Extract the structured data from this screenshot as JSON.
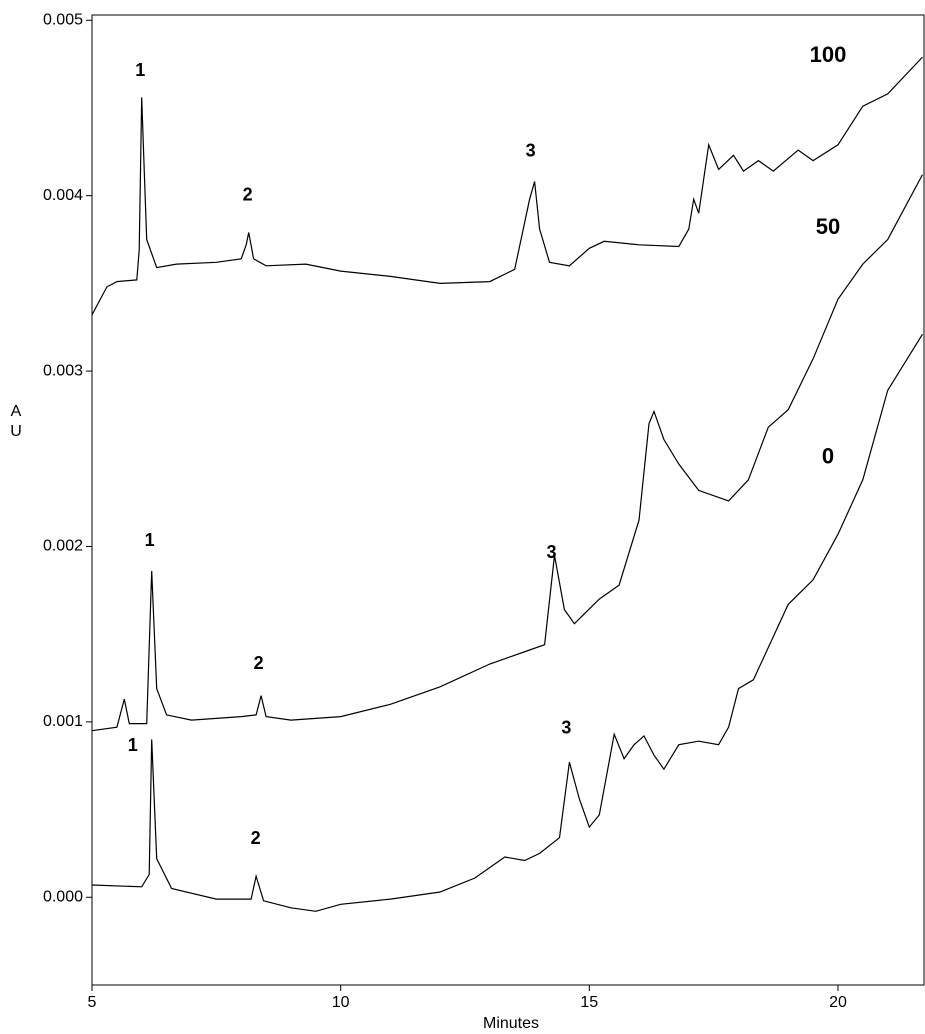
{
  "chart_data": {
    "type": "line",
    "xlabel": "Minutes",
    "ylabel": "A U",
    "xlim": [
      5,
      21.73
    ],
    "ylim": [
      -0.0005,
      0.00503
    ],
    "xticks": [
      5,
      10,
      15,
      20
    ],
    "yticks": [
      {
        "value": 0,
        "label": "0.000"
      },
      {
        "value": 0.001,
        "label": "0.001"
      },
      {
        "value": 0.002,
        "label": "0.002"
      },
      {
        "value": 0.003,
        "label": "0.003"
      },
      {
        "value": 0.004,
        "label": "0.004"
      },
      {
        "value": 0.005,
        "label": "0.005"
      }
    ],
    "grid": false,
    "series": [
      {
        "name": "100",
        "color": "#000000",
        "x": [
          5.0,
          5.3,
          5.5,
          5.9,
          5.95,
          6.0,
          6.05,
          6.1,
          6.3,
          6.7,
          7.5,
          8.0,
          8.1,
          8.15,
          8.25,
          8.5,
          9.3,
          10,
          11,
          12,
          13,
          13.5,
          13.8,
          13.9,
          14.0,
          14.2,
          14.6,
          15,
          15.3,
          16,
          16.8,
          17.0,
          17.1,
          17.2,
          17.4,
          17.6,
          17.9,
          18.1,
          18.4,
          18.7,
          19.2,
          19.5,
          20,
          20.5,
          21,
          21.7
        ],
        "values": [
          0.00332,
          0.00348,
          0.00351,
          0.00352,
          0.00369,
          0.00456,
          0.00415,
          0.00375,
          0.00359,
          0.00361,
          0.00362,
          0.00364,
          0.00372,
          0.00379,
          0.00364,
          0.0036,
          0.00361,
          0.00357,
          0.00354,
          0.0035,
          0.00351,
          0.00358,
          0.00398,
          0.00408,
          0.00381,
          0.00362,
          0.0036,
          0.0037,
          0.00374,
          0.00372,
          0.00371,
          0.00381,
          0.00398,
          0.0039,
          0.00429,
          0.00415,
          0.00423,
          0.00414,
          0.0042,
          0.00414,
          0.00426,
          0.0042,
          0.00429,
          0.00451,
          0.00458,
          0.00479
        ]
      },
      {
        "name": "50",
        "color": "#000000",
        "x": [
          5.0,
          5.5,
          5.65,
          5.75,
          6.1,
          6.2,
          6.3,
          6.5,
          7,
          8,
          8.3,
          8.4,
          8.5,
          9,
          10,
          11,
          12,
          13,
          13.8,
          14.1,
          14.3,
          14.5,
          14.7,
          15.2,
          15.6,
          16,
          16.2,
          16.3,
          16.5,
          16.8,
          17.2,
          17.8,
          18.2,
          18.6,
          19,
          19.5,
          20,
          20.5,
          21,
          21.7
        ],
        "values": [
          0.00095,
          0.00097,
          0.00113,
          0.00099,
          0.00099,
          0.00186,
          0.00119,
          0.00104,
          0.00101,
          0.00103,
          0.00104,
          0.00115,
          0.00103,
          0.00101,
          0.00103,
          0.0011,
          0.0012,
          0.00133,
          0.00141,
          0.00144,
          0.00195,
          0.00164,
          0.00156,
          0.0017,
          0.00178,
          0.00215,
          0.0027,
          0.00277,
          0.00261,
          0.00247,
          0.00232,
          0.00226,
          0.00238,
          0.00268,
          0.00278,
          0.00307,
          0.00341,
          0.00361,
          0.00375,
          0.00412
        ]
      },
      {
        "name": "0",
        "color": "#000000",
        "x": [
          5,
          6.0,
          6.15,
          6.2,
          6.3,
          6.6,
          7.5,
          8.2,
          8.3,
          8.45,
          9,
          9.5,
          10,
          11,
          12,
          12.7,
          13.3,
          13.7,
          14,
          14.4,
          14.6,
          14.8,
          15,
          15.2,
          15.5,
          15.7,
          15.9,
          16.1,
          16.3,
          16.5,
          16.8,
          17.2,
          17.6,
          17.8,
          18,
          18.3,
          19,
          19.5,
          20,
          20.5,
          21,
          21.7
        ],
        "values": [
          7e-05,
          6e-05,
          0.00013,
          0.0009,
          0.00022,
          5e-05,
          -1e-05,
          -1e-05,
          0.00012,
          -2e-05,
          -6e-05,
          -8e-05,
          -4e-05,
          -1e-05,
          3e-05,
          0.00011,
          0.00023,
          0.00021,
          0.00025,
          0.00034,
          0.00077,
          0.00056,
          0.0004,
          0.00047,
          0.00093,
          0.00079,
          0.00087,
          0.00092,
          0.00081,
          0.00073,
          0.00087,
          0.00089,
          0.00087,
          0.00097,
          0.00119,
          0.00124,
          0.00167,
          0.00181,
          0.00207,
          0.00238,
          0.00289,
          0.00321
        ]
      }
    ],
    "annotations": [
      {
        "text": "1",
        "x": 5.97,
        "y": 0.00471
      },
      {
        "text": "2",
        "x": 8.13,
        "y": 0.004
      },
      {
        "text": "3",
        "x": 13.82,
        "y": 0.00425
      },
      {
        "text": "1",
        "x": 6.16,
        "y": 0.00203
      },
      {
        "text": "2",
        "x": 8.35,
        "y": 0.00133
      },
      {
        "text": "3",
        "x": 14.24,
        "y": 0.00196
      },
      {
        "text": "1",
        "x": 5.82,
        "y": 0.00086
      },
      {
        "text": "2",
        "x": 8.29,
        "y": 0.00033
      },
      {
        "text": "3",
        "x": 14.54,
        "y": 0.00096
      }
    ]
  }
}
